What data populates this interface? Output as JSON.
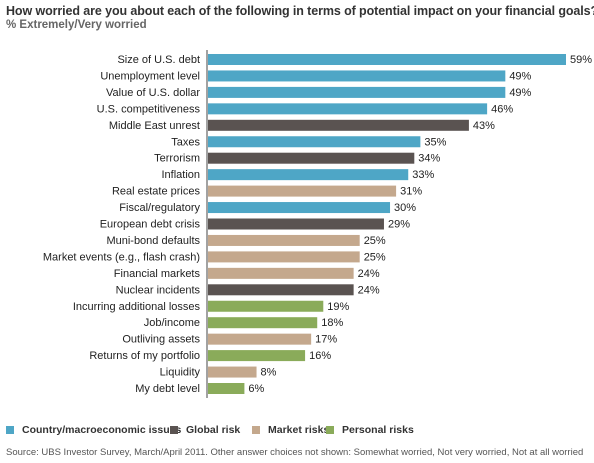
{
  "title": "How worried are you about each of the following in terms of potential impact on your financial goals?",
  "subtitle": "% Extremely/Very worried",
  "colors": {
    "country": "#4ea6c6",
    "global": "#5a5351",
    "market": "#c4a88d",
    "personal": "#8aab5a"
  },
  "legend": [
    {
      "key": "country",
      "label": "Country/macroeconomic issues"
    },
    {
      "key": "global",
      "label": "Global risk"
    },
    {
      "key": "market",
      "label": "Market risks"
    },
    {
      "key": "personal",
      "label": "Personal risks"
    }
  ],
  "source": "Source: UBS Investor Survey, March/April 2011. Other answer choices not shown: Somewhat worried, Not very worried, Not at all worried",
  "chart_data": {
    "type": "bar",
    "orientation": "horizontal",
    "value_suffix": "%",
    "xlim": [
      0,
      59
    ],
    "categories": [
      "Size of U.S. debt",
      "Unemployment level",
      "Value of U.S. dollar",
      "U.S. competitiveness",
      "Middle East unrest",
      "Taxes",
      "Terrorism",
      "Inflation",
      "Real estate prices",
      "Fiscal/regulatory",
      "European debt crisis",
      "Muni-bond defaults",
      "Market events (e.g., flash crash)",
      "Financial markets",
      "Nuclear incidents",
      "Incurring additional losses",
      "Job/income",
      "Outliving assets",
      "Returns of my portfolio",
      "Liquidity",
      "My debt level"
    ],
    "values": [
      59,
      49,
      49,
      46,
      43,
      35,
      34,
      33,
      31,
      30,
      29,
      25,
      25,
      24,
      24,
      19,
      18,
      17,
      16,
      8,
      6
    ],
    "groups": [
      "country",
      "country",
      "country",
      "country",
      "global",
      "country",
      "global",
      "country",
      "market",
      "country",
      "global",
      "market",
      "market",
      "market",
      "global",
      "personal",
      "personal",
      "market",
      "personal",
      "market",
      "personal"
    ],
    "data_labels": [
      "59%",
      "49%",
      "49%",
      "46%",
      "43%",
      "35%",
      "34%",
      "33%",
      "31%",
      "30%",
      "29%",
      "25%",
      "25%",
      "24%",
      "24%",
      "19%",
      "18%",
      "17%",
      "16%",
      "8%",
      "6%"
    ]
  }
}
